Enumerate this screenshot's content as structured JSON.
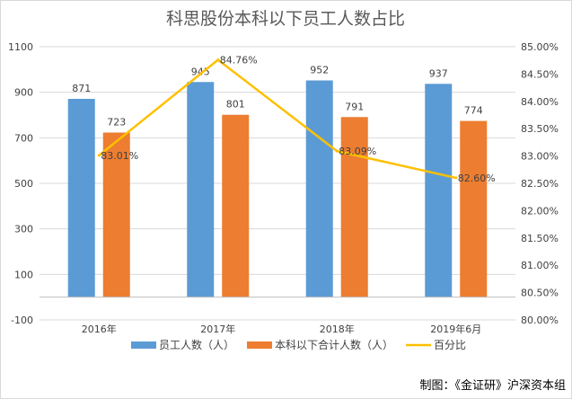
{
  "chart_data": {
    "type": "bar",
    "title": "科思股份本科以下员工人数占比",
    "categories": [
      "2016年",
      "2017年",
      "2018年",
      "2019年6月"
    ],
    "series": [
      {
        "name": "员工人数（人）",
        "type": "bar",
        "axis": "left",
        "color": "#5b9bd5",
        "values": [
          871,
          945,
          952,
          937
        ]
      },
      {
        "name": "本科以下合计人数（人）",
        "type": "bar",
        "axis": "left",
        "color": "#ed7d31",
        "values": [
          723,
          801,
          791,
          774
        ]
      },
      {
        "name": "百分比",
        "type": "line",
        "axis": "right",
        "color": "#ffc000",
        "values": [
          83.01,
          84.76,
          83.09,
          82.6
        ],
        "labels": [
          "83.01%",
          "84.76%",
          "83.09%",
          "82.60%"
        ]
      }
    ],
    "y_left": {
      "min": -100,
      "max": 1100,
      "ticks": [
        "-100",
        "100",
        "300",
        "500",
        "700",
        "900",
        "1100"
      ]
    },
    "y_right": {
      "min": 80,
      "max": 85,
      "ticks": [
        "80.00%",
        "80.50%",
        "81.00%",
        "81.50%",
        "82.00%",
        "82.50%",
        "83.00%",
        "83.50%",
        "84.00%",
        "84.50%",
        "85.00%"
      ]
    },
    "grid": true,
    "legend_position": "bottom"
  },
  "credit": "制图：《金证研》沪深资本组"
}
